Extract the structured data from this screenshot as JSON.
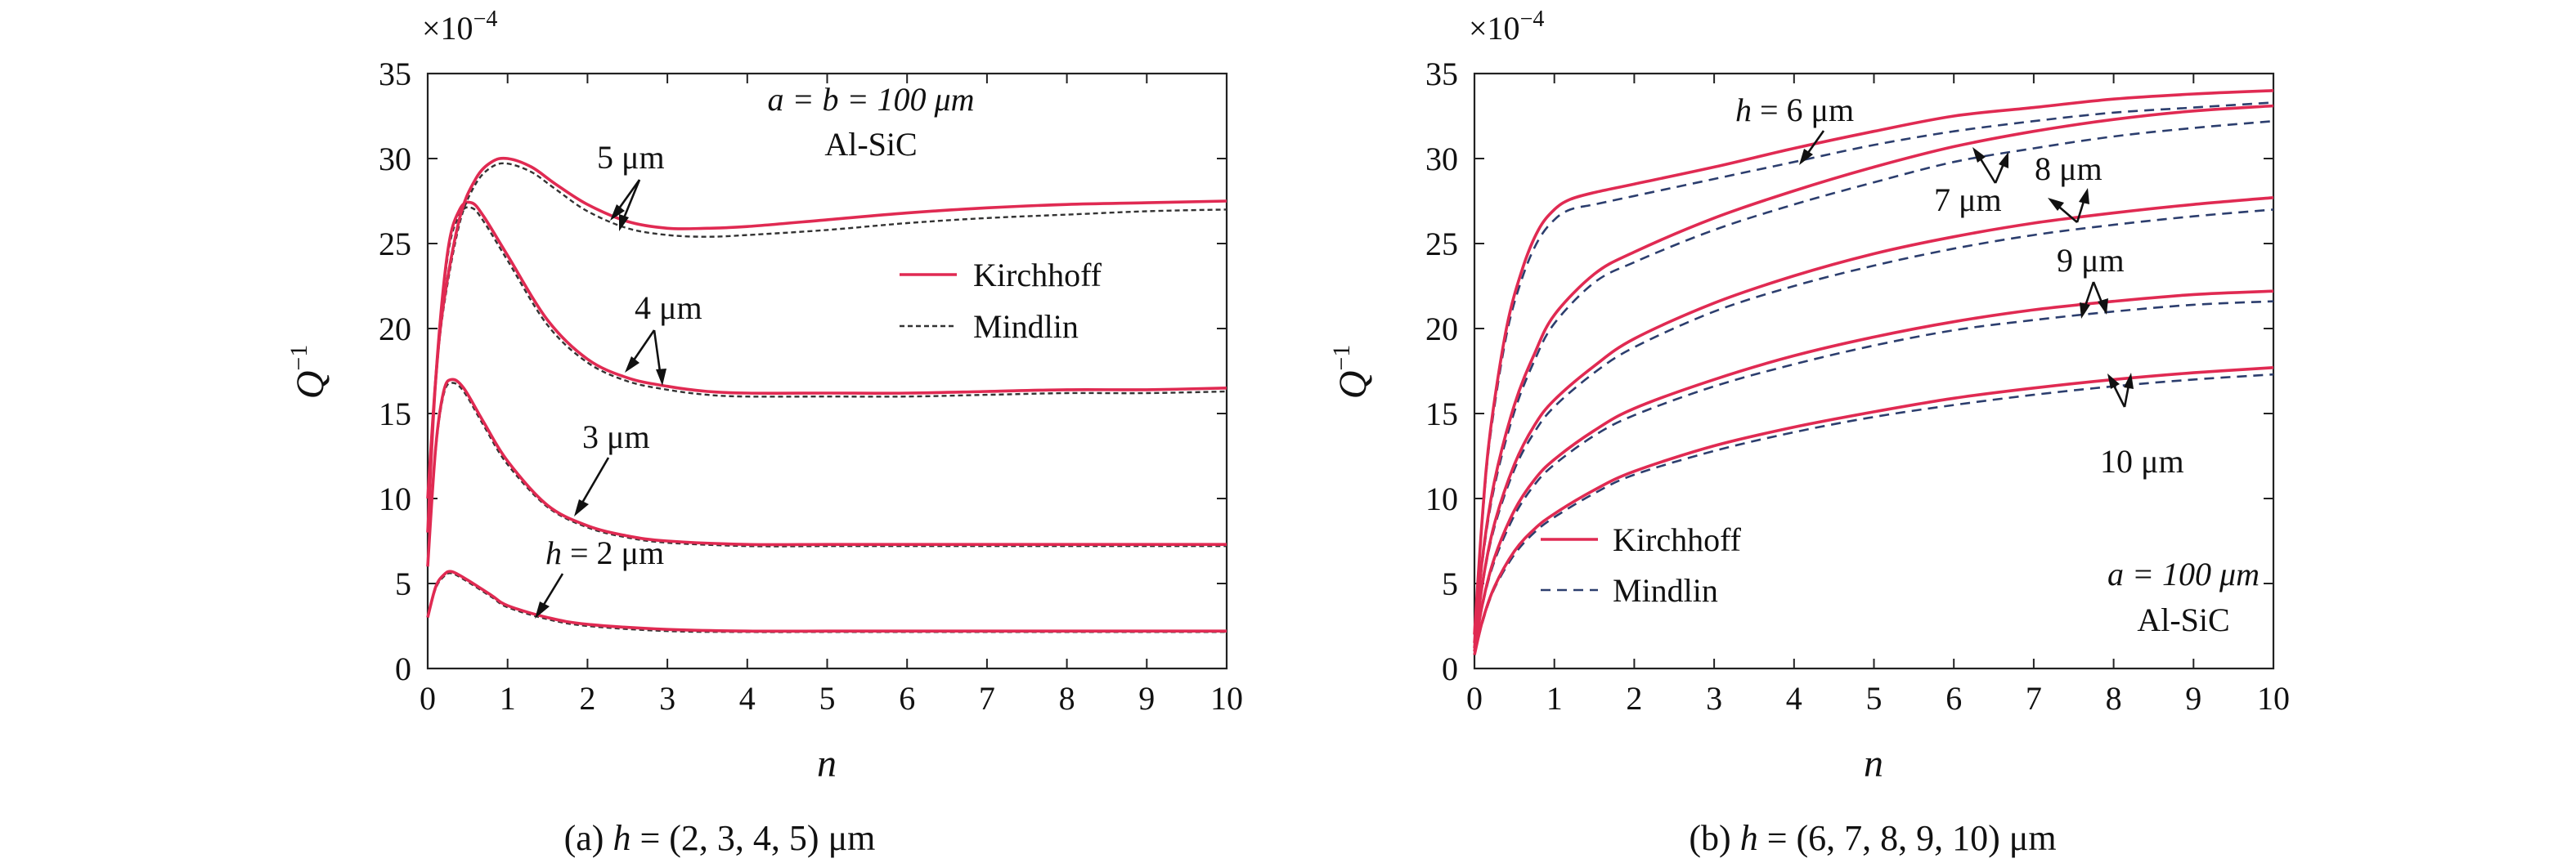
{
  "chart_data": [
    {
      "type": "line",
      "panel": "a",
      "xlabel": "n",
      "ylabel_main": "Q",
      "ylabel_sup": "−1",
      "multiplier": "×10",
      "multiplier_exp": "−4",
      "xlim": [
        0,
        10
      ],
      "ylim": [
        0,
        35
      ],
      "xticks": [
        "0",
        "1",
        "2",
        "3",
        "4",
        "5",
        "6",
        "7",
        "8",
        "9",
        "10"
      ],
      "yticks": [
        "0",
        "5",
        "10",
        "15",
        "20",
        "25",
        "30",
        "35"
      ],
      "caption_prefix": "(a) ",
      "caption_italic": "h",
      "caption_rest": " = (2, 3, 4, 5) μm",
      "annotation_lines": [
        "a = b = 100 μm",
        "Al-SiC"
      ],
      "legend": [
        "Kirchhoff",
        "Mindlin"
      ],
      "series": [
        {
          "label": "h = 2 μm",
          "label_italic": "h",
          "label_rest": " = 2 μm",
          "kirchhoff": {
            "x": [
              0,
              0.1,
              0.2,
              0.3,
              0.5,
              0.8,
              1,
              1.5,
              2,
              3,
              4,
              5,
              6,
              7,
              8,
              9,
              10
            ],
            "y": [
              3,
              4.8,
              5.5,
              5.7,
              5.2,
              4.3,
              3.7,
              3.0,
              2.6,
              2.3,
              2.2,
              2.2,
              2.2,
              2.2,
              2.2,
              2.2,
              2.2
            ]
          },
          "mindlin": {
            "x": [
              0,
              0.1,
              0.2,
              0.3,
              0.5,
              0.8,
              1,
              1.5,
              2,
              3,
              4,
              5,
              6,
              7,
              8,
              9,
              10
            ],
            "y": [
              3,
              4.7,
              5.4,
              5.6,
              5.1,
              4.2,
              3.6,
              2.9,
              2.5,
              2.2,
              2.15,
              2.15,
              2.15,
              2.15,
              2.15,
              2.15,
              2.15
            ]
          }
        },
        {
          "label": "3 μm",
          "kirchhoff": {
            "x": [
              0,
              0.1,
              0.2,
              0.3,
              0.45,
              0.7,
              1,
              1.5,
              2,
              2.5,
              3,
              4,
              5,
              6,
              7,
              8,
              9,
              10
            ],
            "y": [
              6,
              13,
              16.3,
              17,
              16.5,
              14.5,
              12.2,
              9.6,
              8.4,
              7.8,
              7.5,
              7.3,
              7.3,
              7.3,
              7.3,
              7.3,
              7.3,
              7.3
            ]
          },
          "mindlin": {
            "x": [
              0,
              0.1,
              0.2,
              0.3,
              0.45,
              0.7,
              1,
              1.5,
              2,
              2.5,
              3,
              4,
              5,
              6,
              7,
              8,
              9,
              10
            ],
            "y": [
              6,
              12.8,
              16.1,
              16.8,
              16.3,
              14.3,
              12.0,
              9.5,
              8.3,
              7.7,
              7.4,
              7.2,
              7.2,
              7.2,
              7.2,
              7.2,
              7.2,
              7.2
            ]
          }
        },
        {
          "label": "4 μm",
          "kirchhoff": {
            "x": [
              0,
              0.1,
              0.25,
              0.4,
              0.55,
              0.7,
              1,
              1.5,
              2,
              2.5,
              3,
              3.5,
              4,
              5,
              6,
              7,
              8,
              9,
              10
            ],
            "y": [
              8,
              17,
              24.5,
              27,
              27.4,
              26.6,
              24.3,
              20.5,
              18.2,
              17.1,
              16.6,
              16.3,
              16.2,
              16.2,
              16.2,
              16.3,
              16.4,
              16.4,
              16.5
            ]
          },
          "mindlin": {
            "x": [
              0,
              0.1,
              0.25,
              0.4,
              0.55,
              0.7,
              1,
              1.5,
              2,
              2.5,
              3,
              3.5,
              4,
              5,
              6,
              7,
              8,
              9,
              10
            ],
            "y": [
              8,
              16.8,
              24.2,
              26.7,
              27.1,
              26.3,
              24.0,
              20.2,
              18.0,
              16.9,
              16.4,
              16.1,
              16.0,
              16.0,
              16.0,
              16.1,
              16.2,
              16.2,
              16.3
            ]
          }
        },
        {
          "label": "5 μm",
          "kirchhoff": {
            "x": [
              0,
              0.1,
              0.2,
              0.4,
              0.6,
              0.8,
              1,
              1.3,
              1.6,
              2,
              2.5,
              3,
              3.5,
              4,
              5,
              6,
              7,
              8,
              9,
              10
            ],
            "y": [
              10,
              17,
              21.5,
              26.5,
              28.8,
              29.8,
              30,
              29.5,
              28.5,
              27.3,
              26.3,
              25.9,
              25.9,
              26.0,
              26.4,
              26.8,
              27.1,
              27.3,
              27.4,
              27.5
            ]
          },
          "mindlin": {
            "x": [
              0,
              0.1,
              0.2,
              0.4,
              0.6,
              0.8,
              1,
              1.3,
              1.6,
              2,
              2.5,
              3,
              3.5,
              4,
              5,
              6,
              7,
              8,
              9,
              10
            ],
            "y": [
              10,
              16.8,
              21.2,
              26.2,
              28.5,
              29.5,
              29.7,
              29.2,
              28.2,
              26.9,
              25.9,
              25.5,
              25.4,
              25.5,
              25.8,
              26.2,
              26.5,
              26.7,
              26.9,
              27.0
            ]
          }
        }
      ],
      "labels": [
        "5 μm",
        "4 μm",
        "3 μm"
      ]
    },
    {
      "type": "line",
      "panel": "b",
      "xlabel": "n",
      "ylabel_main": "Q",
      "ylabel_sup": "−1",
      "multiplier": "×10",
      "multiplier_exp": "−4",
      "xlim": [
        0,
        10
      ],
      "ylim": [
        0,
        35
      ],
      "xticks": [
        "0",
        "1",
        "2",
        "3",
        "4",
        "5",
        "6",
        "7",
        "8",
        "9",
        "10"
      ],
      "yticks": [
        "0",
        "5",
        "10",
        "15",
        "20",
        "25",
        "30",
        "35"
      ],
      "caption_prefix": "(b) ",
      "caption_italic": "h",
      "caption_rest": " = (6, 7, 8, 9, 10) μm",
      "annotation_lines": [
        "a = 100 μm",
        "Al-SiC"
      ],
      "legend": [
        "Kirchhoff",
        "Mindlin"
      ],
      "series": [
        {
          "label": "h = 6 μm",
          "label_italic": "h",
          "label_rest": " = 6 μm",
          "kirchhoff": {
            "x": [
              0,
              0.1,
              0.2,
              0.4,
              0.6,
              0.8,
              1,
              1.2,
              1.5,
              2,
              3,
              4,
              5,
              6,
              7,
              8,
              9,
              10
            ],
            "y": [
              2,
              9,
              14,
              20,
              23.5,
              25.8,
              27,
              27.6,
              28,
              28.5,
              29.5,
              30.6,
              31.6,
              32.5,
              33,
              33.5,
              33.8,
              34
            ]
          },
          "mindlin": {
            "x": [
              0,
              0.1,
              0.2,
              0.4,
              0.6,
              0.8,
              1,
              1.2,
              1.5,
              2,
              3,
              4,
              5,
              6,
              7,
              8,
              9,
              10
            ],
            "y": [
              2,
              8.8,
              13.7,
              19.6,
              23,
              25.2,
              26.4,
              27,
              27.3,
              27.8,
              28.8,
              29.8,
              30.8,
              31.6,
              32.2,
              32.7,
              33,
              33.3
            ]
          }
        },
        {
          "label": "7 μm",
          "kirchhoff": {
            "x": [
              0,
              0.1,
              0.25,
              0.5,
              0.75,
              1,
              1.5,
              2,
              3,
              4,
              5,
              6,
              7,
              8,
              9,
              10
            ],
            "y": [
              1.5,
              6.5,
              11,
              15.5,
              18.5,
              20.8,
              23.2,
              24.5,
              26.5,
              28.1,
              29.5,
              30.7,
              31.6,
              32.3,
              32.8,
              33.1
            ]
          },
          "mindlin": {
            "x": [
              0,
              0.1,
              0.25,
              0.5,
              0.75,
              1,
              1.5,
              2,
              3,
              4,
              5,
              6,
              7,
              8,
              9,
              10
            ],
            "y": [
              1.5,
              6.3,
              10.7,
              15.1,
              18.1,
              20.3,
              22.7,
              23.9,
              25.8,
              27.3,
              28.6,
              29.8,
              30.6,
              31.3,
              31.8,
              32.2
            ]
          }
        },
        {
          "label": "8 μm",
          "kirchhoff": {
            "x": [
              0,
              0.1,
              0.25,
              0.5,
              0.75,
              1,
              1.5,
              2,
              3,
              4,
              5,
              6,
              7,
              8,
              9,
              10
            ],
            "y": [
              1.2,
              5,
              8.5,
              12,
              14.3,
              15.8,
              17.8,
              19.4,
              21.5,
              23.1,
              24.4,
              25.4,
              26.2,
              26.8,
              27.3,
              27.7
            ]
          },
          "mindlin": {
            "x": [
              0,
              0.1,
              0.25,
              0.5,
              0.75,
              1,
              1.5,
              2,
              3,
              4,
              5,
              6,
              7,
              8,
              9,
              10
            ],
            "y": [
              1.2,
              4.9,
              8.3,
              11.7,
              13.9,
              15.4,
              17.4,
              18.9,
              21,
              22.5,
              23.7,
              24.7,
              25.5,
              26.1,
              26.6,
              27
            ]
          }
        },
        {
          "label": "9 μm",
          "kirchhoff": {
            "x": [
              0,
              0.1,
              0.25,
              0.5,
              0.75,
              1,
              1.5,
              2,
              3,
              4,
              5,
              6,
              7,
              8,
              9,
              10
            ],
            "y": [
              1,
              3.8,
              6.5,
              9.3,
              11.1,
              12.3,
              14,
              15.3,
              17,
              18.4,
              19.5,
              20.4,
              21.1,
              21.6,
              22,
              22.2
            ]
          },
          "mindlin": {
            "x": [
              0,
              0.1,
              0.25,
              0.5,
              0.75,
              1,
              1.5,
              2,
              3,
              4,
              5,
              6,
              7,
              8,
              9,
              10
            ],
            "y": [
              1,
              3.7,
              6.3,
              9,
              10.8,
              12,
              13.7,
              14.9,
              16.6,
              17.9,
              19,
              19.9,
              20.5,
              21,
              21.4,
              21.6
            ]
          }
        },
        {
          "label": "10 μm",
          "kirchhoff": {
            "x": [
              0,
              0.1,
              0.25,
              0.5,
              0.75,
              1,
              1.5,
              2,
              3,
              4,
              5,
              6,
              7,
              8,
              9,
              10
            ],
            "y": [
              0.8,
              2.8,
              4.8,
              6.9,
              8.2,
              9.1,
              10.5,
              11.6,
              13.1,
              14.2,
              15.1,
              15.9,
              16.5,
              17,
              17.4,
              17.7
            ]
          },
          "mindlin": {
            "x": [
              0,
              0.1,
              0.25,
              0.5,
              0.75,
              1,
              1.5,
              2,
              3,
              4,
              5,
              6,
              7,
              8,
              9,
              10
            ],
            "y": [
              0.8,
              2.7,
              4.7,
              6.7,
              8,
              8.9,
              10.3,
              11.4,
              12.8,
              13.9,
              14.8,
              15.5,
              16.1,
              16.6,
              17,
              17.3
            ]
          }
        }
      ],
      "labels": [
        "7 μm",
        "8 μm",
        "9 μm",
        "10 μm"
      ]
    }
  ]
}
